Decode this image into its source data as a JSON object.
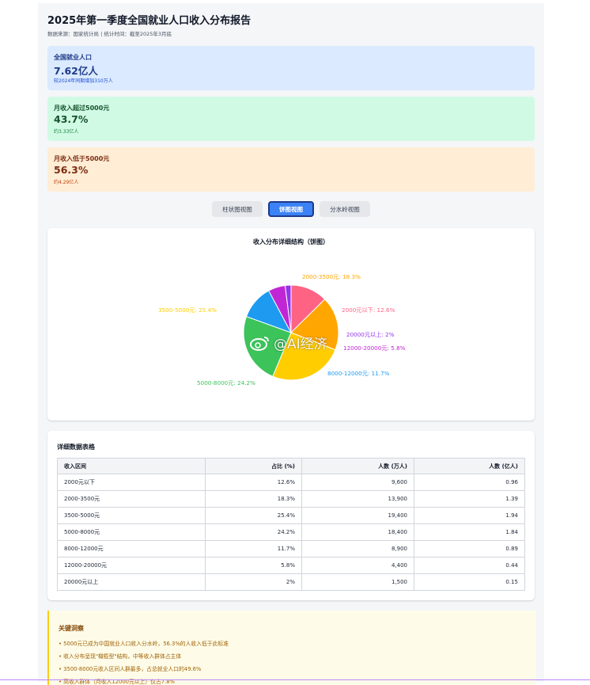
{
  "header": {
    "title": "2025年第一季度全国就业人口收入分布报告",
    "subtitle": "数据来源：国家统计局 | 统计时间：截至2025年3月底"
  },
  "cards": [
    {
      "label": "全国就业人口",
      "value": "7.62亿人",
      "sub": "较2024年同期增加310万人"
    },
    {
      "label": "月收入超过5000元",
      "value": "43.7%",
      "sub": "约3.33亿人"
    },
    {
      "label": "月收入低于5000元",
      "value": "56.3%",
      "sub": "约4.29亿人"
    }
  ],
  "tabs": [
    {
      "label": "柱状图视图",
      "active": false
    },
    {
      "label": "饼图视图",
      "active": true
    },
    {
      "label": "分水岭视图",
      "active": false
    }
  ],
  "chart_data": {
    "type": "pie",
    "title": "收入分布详细结构（饼图）",
    "slices": [
      {
        "label": "2000元以下",
        "value": 12.6,
        "color": "#ff6384"
      },
      {
        "label": "2000-3500元",
        "value": 18.3,
        "color": "#ffa600"
      },
      {
        "label": "3500-5000元",
        "value": 25.4,
        "color": "#ffcd00"
      },
      {
        "label": "5000-8000元",
        "value": 24.2,
        "color": "#3cc35a"
      },
      {
        "label": "8000-12000元",
        "value": 11.7,
        "color": "#1e9bf0"
      },
      {
        "label": "12000-20000元",
        "value": 5.8,
        "color": "#c026d3"
      },
      {
        "label": "20000元以上",
        "value": 2,
        "color": "#9333ea"
      }
    ]
  },
  "table": {
    "title": "详细数据表格",
    "headers": [
      "收入区间",
      "占比 (%)",
      "人数 (万人)",
      "人数 (亿人)"
    ],
    "rows": [
      [
        "2000元以下",
        "12.6%",
        "9,600",
        "0.96"
      ],
      [
        "2000-3500元",
        "18.3%",
        "13,900",
        "1.39"
      ],
      [
        "3500-5000元",
        "25.4%",
        "19,400",
        "1.94"
      ],
      [
        "5000-8000元",
        "24.2%",
        "18,400",
        "1.84"
      ],
      [
        "8000-12000元",
        "11.7%",
        "8,900",
        "0.89"
      ],
      [
        "12000-20000元",
        "5.8%",
        "4,400",
        "0.44"
      ],
      [
        "20000元以上",
        "2%",
        "1,500",
        "0.15"
      ]
    ]
  },
  "insights": {
    "title": "关键洞察",
    "items": [
      "• 5000元已成为中国就业人口收入分水岭，56.3%的人收入低于此标准",
      "• 收入分布呈现\"橄榄型\"结构，中等收入群体占主体",
      "• 3500-8000元收入区间人群最多，占总就业人口的49.6%",
      "• 高收入群体（月收入12000元以上）仅占7.8%"
    ]
  },
  "watermark": {
    "icon": "weibo-icon",
    "text": "@AI经济"
  }
}
